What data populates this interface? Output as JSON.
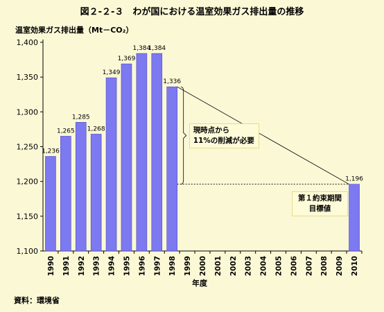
{
  "figure_title": "図２-２-３　わが国における温室効果ガス排出量の推移",
  "source": "資料：環境省",
  "colors": {
    "bar": "#7d79f0",
    "bar_stroke": "#4d49c8",
    "background": "#fbf8d6",
    "note_bg": "#fefbd9",
    "note_border": "#e6dc8c"
  },
  "chart_data": {
    "type": "bar",
    "title": "",
    "ylabel": "温室効果ガス排出量（Mt－CO₂）",
    "xlabel": "年度",
    "ylim": [
      1100,
      1400
    ],
    "yticks": [
      1100,
      1150,
      1200,
      1250,
      1300,
      1350,
      1400
    ],
    "ytick_labels": [
      "1,100",
      "1,150",
      "1,200",
      "1,250",
      "1,300",
      "1,350",
      "1,400"
    ],
    "grid": false,
    "categories": [
      "1990",
      "1991",
      "1992",
      "1993",
      "1994",
      "1995",
      "1996",
      "1997",
      "1998",
      "1999",
      "2000",
      "2001",
      "2002",
      "2003",
      "2004",
      "2005",
      "2006",
      "2007",
      "2008",
      "2009",
      "2010"
    ],
    "values": [
      1236,
      1265,
      1285,
      1268,
      1349,
      1369,
      1384,
      1384,
      1336,
      null,
      null,
      null,
      null,
      null,
      null,
      null,
      null,
      null,
      null,
      null,
      1196
    ],
    "data_labels": [
      "1,236",
      "1,265",
      "1,285",
      "1,268",
      "1,349",
      "1,369",
      "1,384",
      "1,384",
      "1,336",
      "",
      "",
      "",
      "",
      "",
      "",
      "",
      "",
      "",
      "",
      "",
      "1,196"
    ],
    "annotations": [
      {
        "text_lines": [
          "現時点から",
          "11%の削減が必要"
        ],
        "from_year": "1998",
        "to_year": "2010",
        "from_value": 1336,
        "to_value": 1196
      },
      {
        "text_lines": [
          "第１約束期間",
          "目標値"
        ],
        "year": "2010"
      }
    ]
  }
}
